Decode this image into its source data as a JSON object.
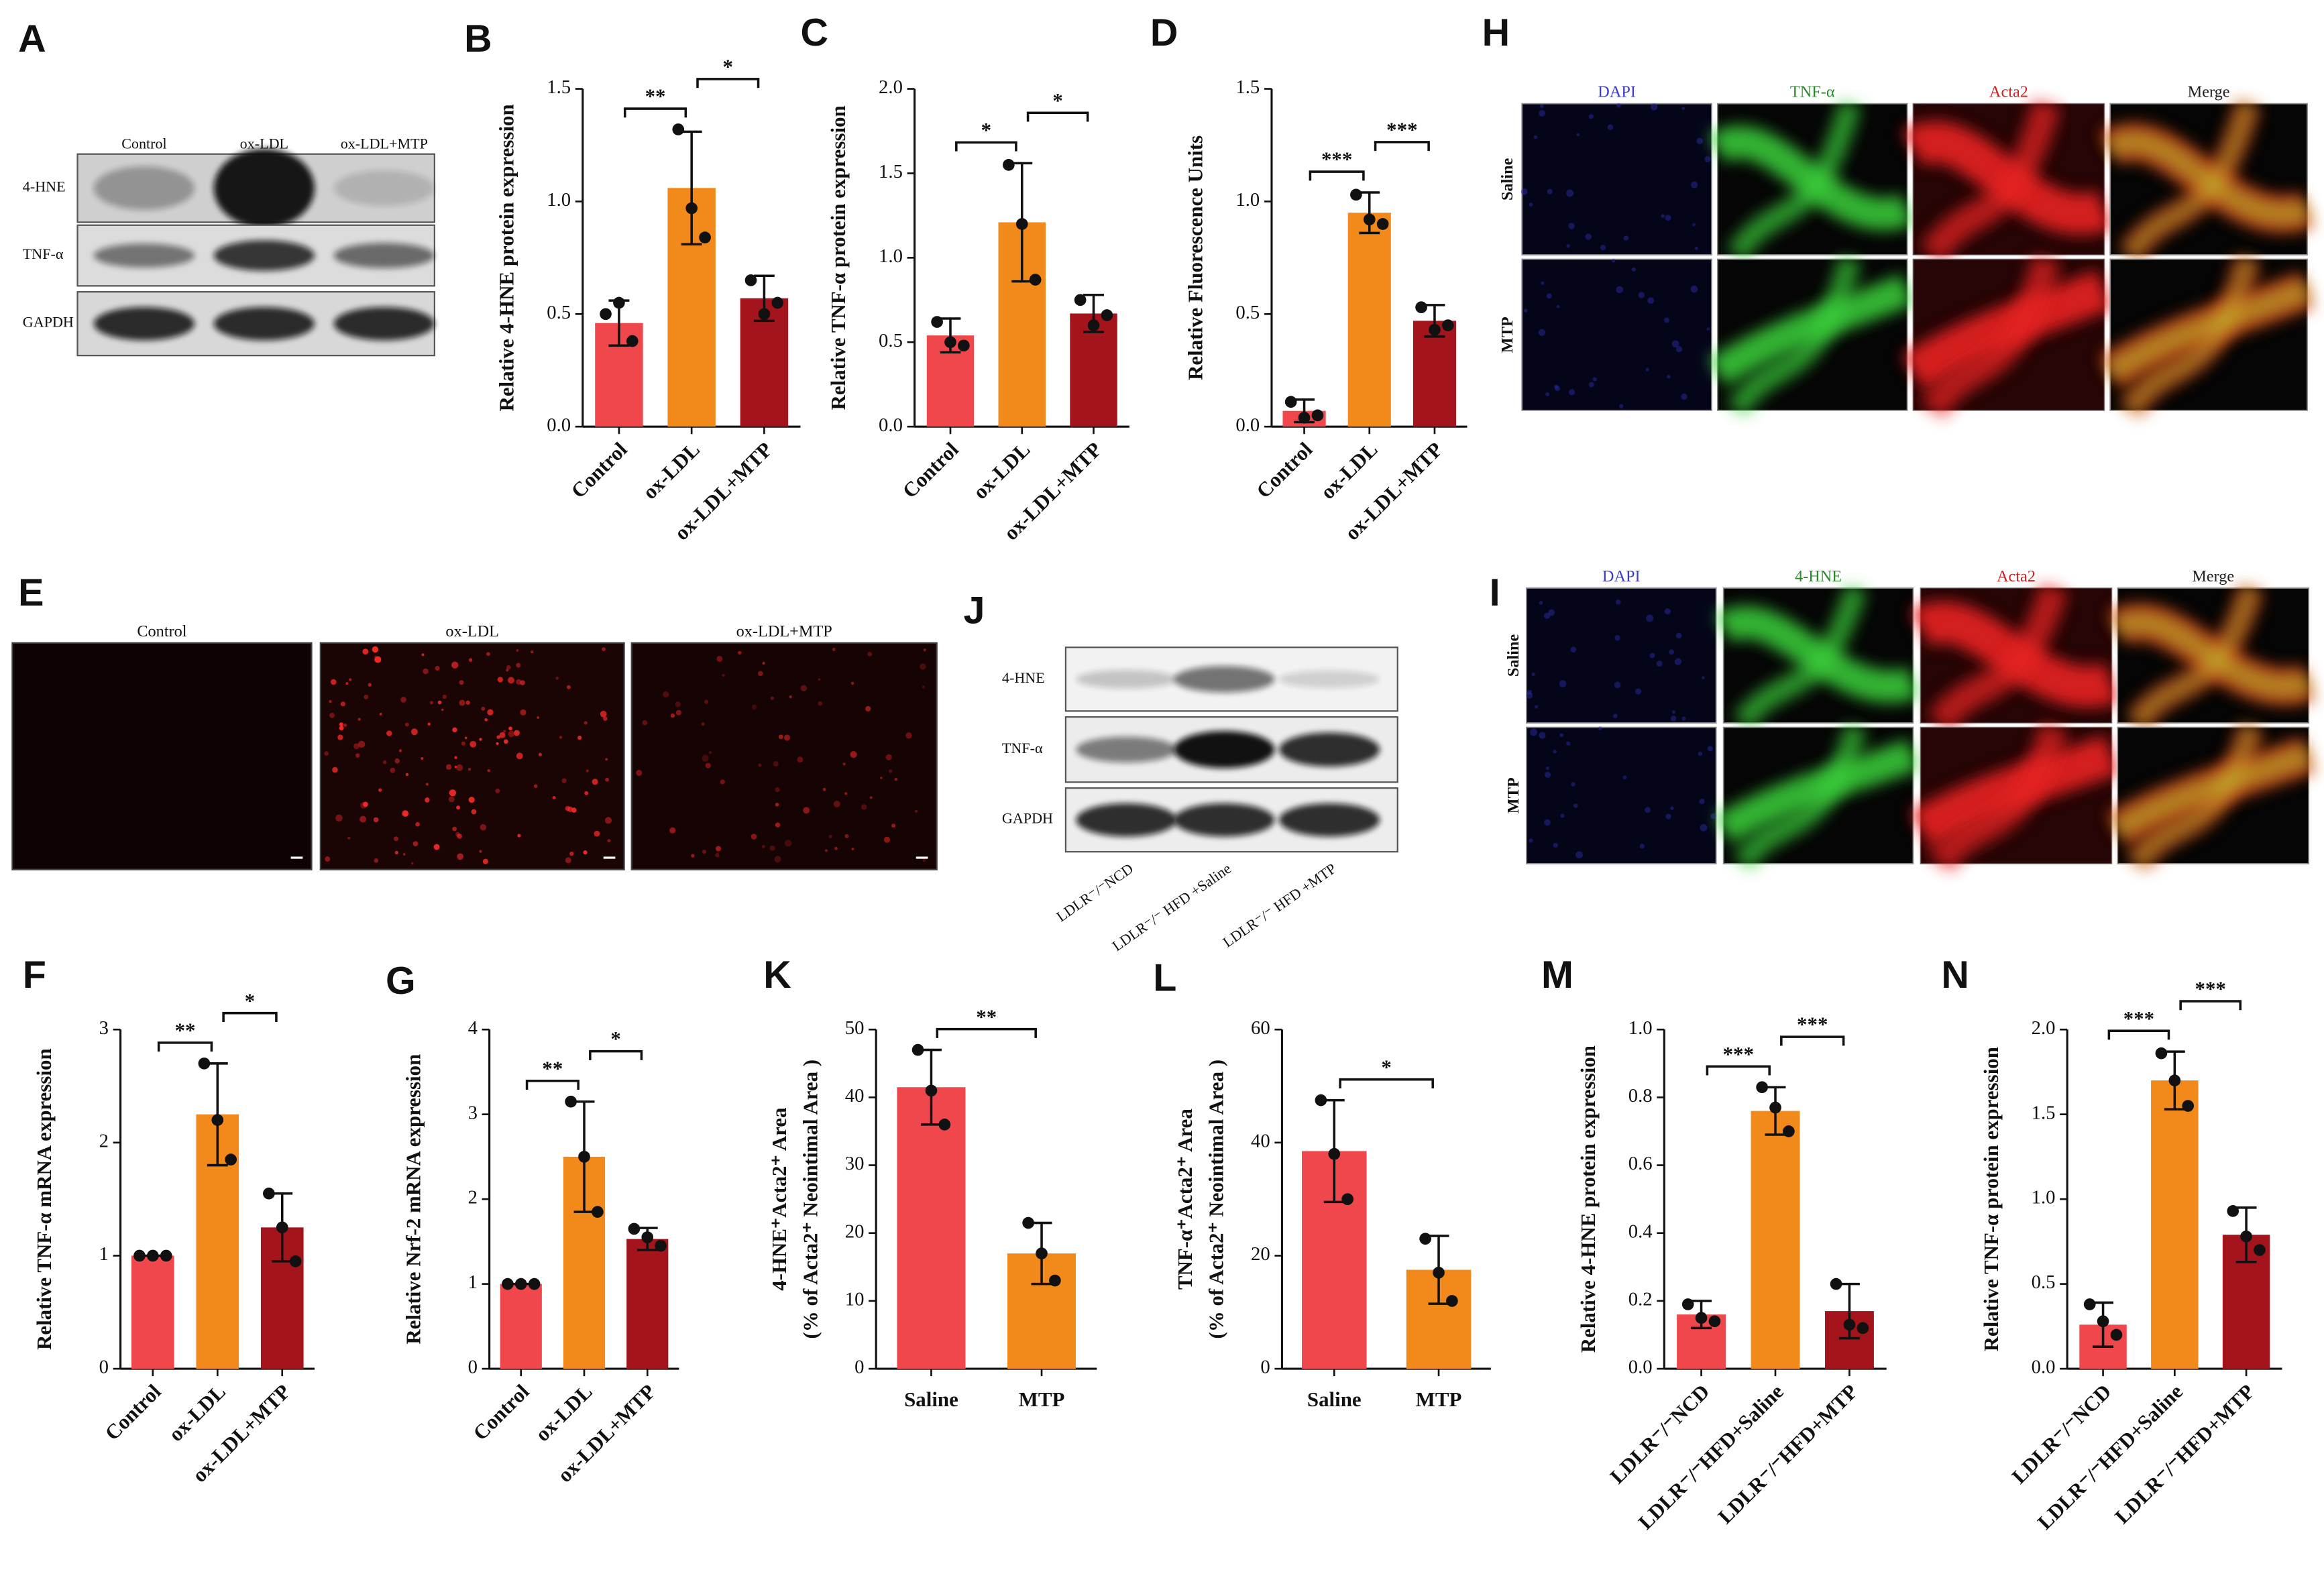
{
  "chart_data": [
    {
      "label": "B",
      "type": "bar",
      "ylabel": "Relative 4-HNE  protein expression",
      "categories": [
        "Control",
        "ox-LDL",
        "ox-LDL+MTP"
      ],
      "colors": [
        "#f0474c",
        "#f28a1b",
        "#a3141c"
      ],
      "values": [
        0.46,
        1.06,
        0.57
      ],
      "errors": [
        0.1,
        0.25,
        0.1
      ],
      "points": [
        [
          0.5,
          0.55,
          0.38
        ],
        [
          1.32,
          0.97,
          0.84
        ],
        [
          0.65,
          0.5,
          0.55
        ]
      ],
      "significance": [
        "**",
        "*"
      ],
      "ylim": [
        0,
        1.5
      ],
      "yticks": [
        {
          "value": 0,
          "label": "0.0"
        },
        0.5,
        {
          "value": 1,
          "label": "1.0"
        },
        1.5
      ]
    },
    {
      "label": "C",
      "type": "bar",
      "ylabel": "Relative TNF-α protein expression",
      "categories": [
        "Control",
        "ox-LDL",
        "ox-LDL+MTP"
      ],
      "colors": [
        "#f0474c",
        "#f28a1b",
        "#a3141c"
      ],
      "values": [
        0.54,
        1.21,
        0.67
      ],
      "errors": [
        0.1,
        0.35,
        0.11
      ],
      "points": [
        [
          0.62,
          0.5,
          0.48
        ],
        [
          1.55,
          1.2,
          0.87
        ],
        [
          0.75,
          0.6,
          0.66
        ]
      ],
      "significance": [
        "*",
        "*"
      ],
      "ylim": [
        0,
        2
      ],
      "yticks": [
        {
          "value": 0,
          "label": "0.0"
        },
        0.5,
        {
          "value": 1,
          "label": "1.0"
        },
        1.5,
        {
          "value": 2,
          "label": "2.0"
        }
      ]
    },
    {
      "label": "D",
      "type": "bar",
      "ylabel": "Relative Fluorescence Units",
      "categories": [
        "Control",
        "ox-LDL",
        "ox-LDL+MTP"
      ],
      "colors": [
        "#f0474c",
        "#f28a1b",
        "#a3141c"
      ],
      "values": [
        0.07,
        0.95,
        0.47
      ],
      "errors": [
        0.05,
        0.09,
        0.07
      ],
      "points": [
        [
          0.11,
          0.04,
          0.05
        ],
        [
          1.03,
          0.92,
          0.9
        ],
        [
          0.53,
          0.43,
          0.45
        ]
      ],
      "significance": [
        "***",
        "***"
      ],
      "ylim": [
        0,
        1.5
      ],
      "yticks": [
        {
          "value": 0,
          "label": "0.0"
        },
        0.5,
        {
          "value": 1,
          "label": "1.0"
        },
        1.5
      ]
    },
    {
      "label": "F",
      "type": "bar",
      "ylabel": "Relative TNF-α mRNA expression",
      "categories": [
        "Control",
        "ox-LDL",
        "ox-LDL+MTP"
      ],
      "colors": [
        "#f0474c",
        "#f28a1b",
        "#a3141c"
      ],
      "values": [
        1,
        2.25,
        1.25
      ],
      "errors": [
        0,
        0.45,
        0.3
      ],
      "points": [
        [
          1,
          1,
          1
        ],
        [
          2.7,
          2.2,
          1.85
        ],
        [
          1.55,
          1.25,
          0.95
        ]
      ],
      "significance": [
        "**",
        "*"
      ],
      "ylim": [
        0,
        3
      ],
      "yticks": [
        0,
        1,
        2,
        3
      ]
    },
    {
      "label": "G",
      "type": "bar",
      "ylabel": "Relative Nrf-2  mRNA expression",
      "categories": [
        "Control",
        "ox-LDL",
        "ox-LDL+MTP"
      ],
      "colors": [
        "#f0474c",
        "#f28a1b",
        "#a3141c"
      ],
      "values": [
        1,
        2.5,
        1.53
      ],
      "errors": [
        0,
        0.65,
        0.13
      ],
      "points": [
        [
          1,
          1,
          1
        ],
        [
          3.15,
          2.5,
          1.85
        ],
        [
          1.65,
          1.55,
          1.45
        ]
      ],
      "significance": [
        "**",
        "*"
      ],
      "ylim": [
        0,
        4
      ],
      "yticks": [
        0,
        1,
        2,
        3,
        4
      ]
    },
    {
      "label": "K",
      "type": "bar",
      "ylabel": [
        "4-HNE⁺Acta2⁺ Area",
        "(% of Acta2⁺ Neointimal Area )"
      ],
      "categories": [
        "Saline",
        "MTP"
      ],
      "colors": [
        "#f0474c",
        "#f28a1b"
      ],
      "values": [
        41.5,
        17
      ],
      "errors": [
        5.5,
        4.5
      ],
      "points": [
        [
          47,
          41,
          36
        ],
        [
          21.5,
          17,
          13
        ]
      ],
      "significance": [
        "**"
      ],
      "ylim": [
        0,
        50
      ],
      "yticks": [
        0,
        10,
        20,
        30,
        40,
        50
      ]
    },
    {
      "label": "L",
      "type": "bar",
      "ylabel": [
        "TNF-α⁺Acta2⁺ Area",
        "(% of Acta2⁺ Neointimal Area )"
      ],
      "categories": [
        "Saline",
        "MTP"
      ],
      "colors": [
        "#f0474c",
        "#f28a1b"
      ],
      "values": [
        38.5,
        17.5
      ],
      "errors": [
        9,
        6
      ],
      "points": [
        [
          47.5,
          38,
          30
        ],
        [
          23,
          17,
          12
        ]
      ],
      "significance": [
        "*"
      ],
      "ylim": [
        0,
        60
      ],
      "yticks": [
        0,
        20,
        40,
        60
      ]
    },
    {
      "label": "M",
      "type": "bar",
      "ylabel": "Relative 4-HNE  protein expression",
      "categories": [
        "LDLR⁻/⁻NCD",
        "LDLR⁻/⁻HFD+Saline",
        "LDLR⁻/⁻HFD+MTP"
      ],
      "colors": [
        "#f0474c",
        "#f28a1b",
        "#a3141c"
      ],
      "values": [
        0.16,
        0.76,
        0.17
      ],
      "errors": [
        0.04,
        0.07,
        0.08
      ],
      "points": [
        [
          0.19,
          0.15,
          0.14
        ],
        [
          0.83,
          0.77,
          0.7
        ],
        [
          0.25,
          0.13,
          0.12
        ]
      ],
      "significance": [
        "***",
        "***"
      ],
      "ylim": [
        0,
        1
      ],
      "yticks": [
        {
          "value": 0,
          "label": "0.0"
        },
        0.2,
        0.4,
        0.6,
        0.8,
        {
          "value": 1,
          "label": "1.0"
        }
      ]
    },
    {
      "label": "N",
      "type": "bar",
      "ylabel": "Relative TNF-α protein expression",
      "categories": [
        "LDLR⁻/⁻NCD",
        "LDLR⁻/⁻HFD+Saline",
        "LDLR⁻/⁻HFD+MTP"
      ],
      "colors": [
        "#f0474c",
        "#f28a1b",
        "#a3141c"
      ],
      "values": [
        0.26,
        1.7,
        0.79
      ],
      "errors": [
        0.13,
        0.17,
        0.16
      ],
      "points": [
        [
          0.38,
          0.28,
          0.2
        ],
        [
          1.86,
          1.7,
          1.55
        ],
        [
          0.93,
          0.78,
          0.7
        ]
      ],
      "significance": [
        "***",
        "***"
      ],
      "ylim": [
        0,
        2
      ],
      "yticks": [
        {
          "value": 0,
          "label": "0.0"
        },
        0.5,
        {
          "value": 1,
          "label": "1.0"
        },
        1.5,
        {
          "value": 2,
          "label": "2.0"
        }
      ]
    }
  ],
  "blots": [
    {
      "label": "A",
      "lanes": [
        "Control",
        "ox-LDL",
        "ox-LDL+MTP"
      ],
      "rows": [
        "4-HNE",
        "TNF-α",
        "GAPDH"
      ]
    },
    {
      "label": "J",
      "lanes": [
        "LDLR⁻/⁻NCD",
        "LDLR⁻/⁻ HFD +Saline",
        "LDLR⁻/⁻ HFD +MTP"
      ],
      "rows": [
        "4-HNE",
        "TNF-α",
        "GAPDH"
      ]
    }
  ],
  "images": [
    {
      "label": "E",
      "columns": [
        "Control",
        "ox-LDL",
        "ox-LDL+MTP"
      ]
    },
    {
      "label": "H",
      "columns": [
        "DAPI",
        "TNF-α",
        "Acta2",
        "Merge"
      ],
      "rows": [
        "Saline",
        "MTP"
      ]
    },
    {
      "label": "I",
      "columns": [
        "DAPI",
        "4-HNE",
        "Acta2",
        "Merge"
      ],
      "rows": [
        "Saline",
        "MTP"
      ]
    }
  ]
}
